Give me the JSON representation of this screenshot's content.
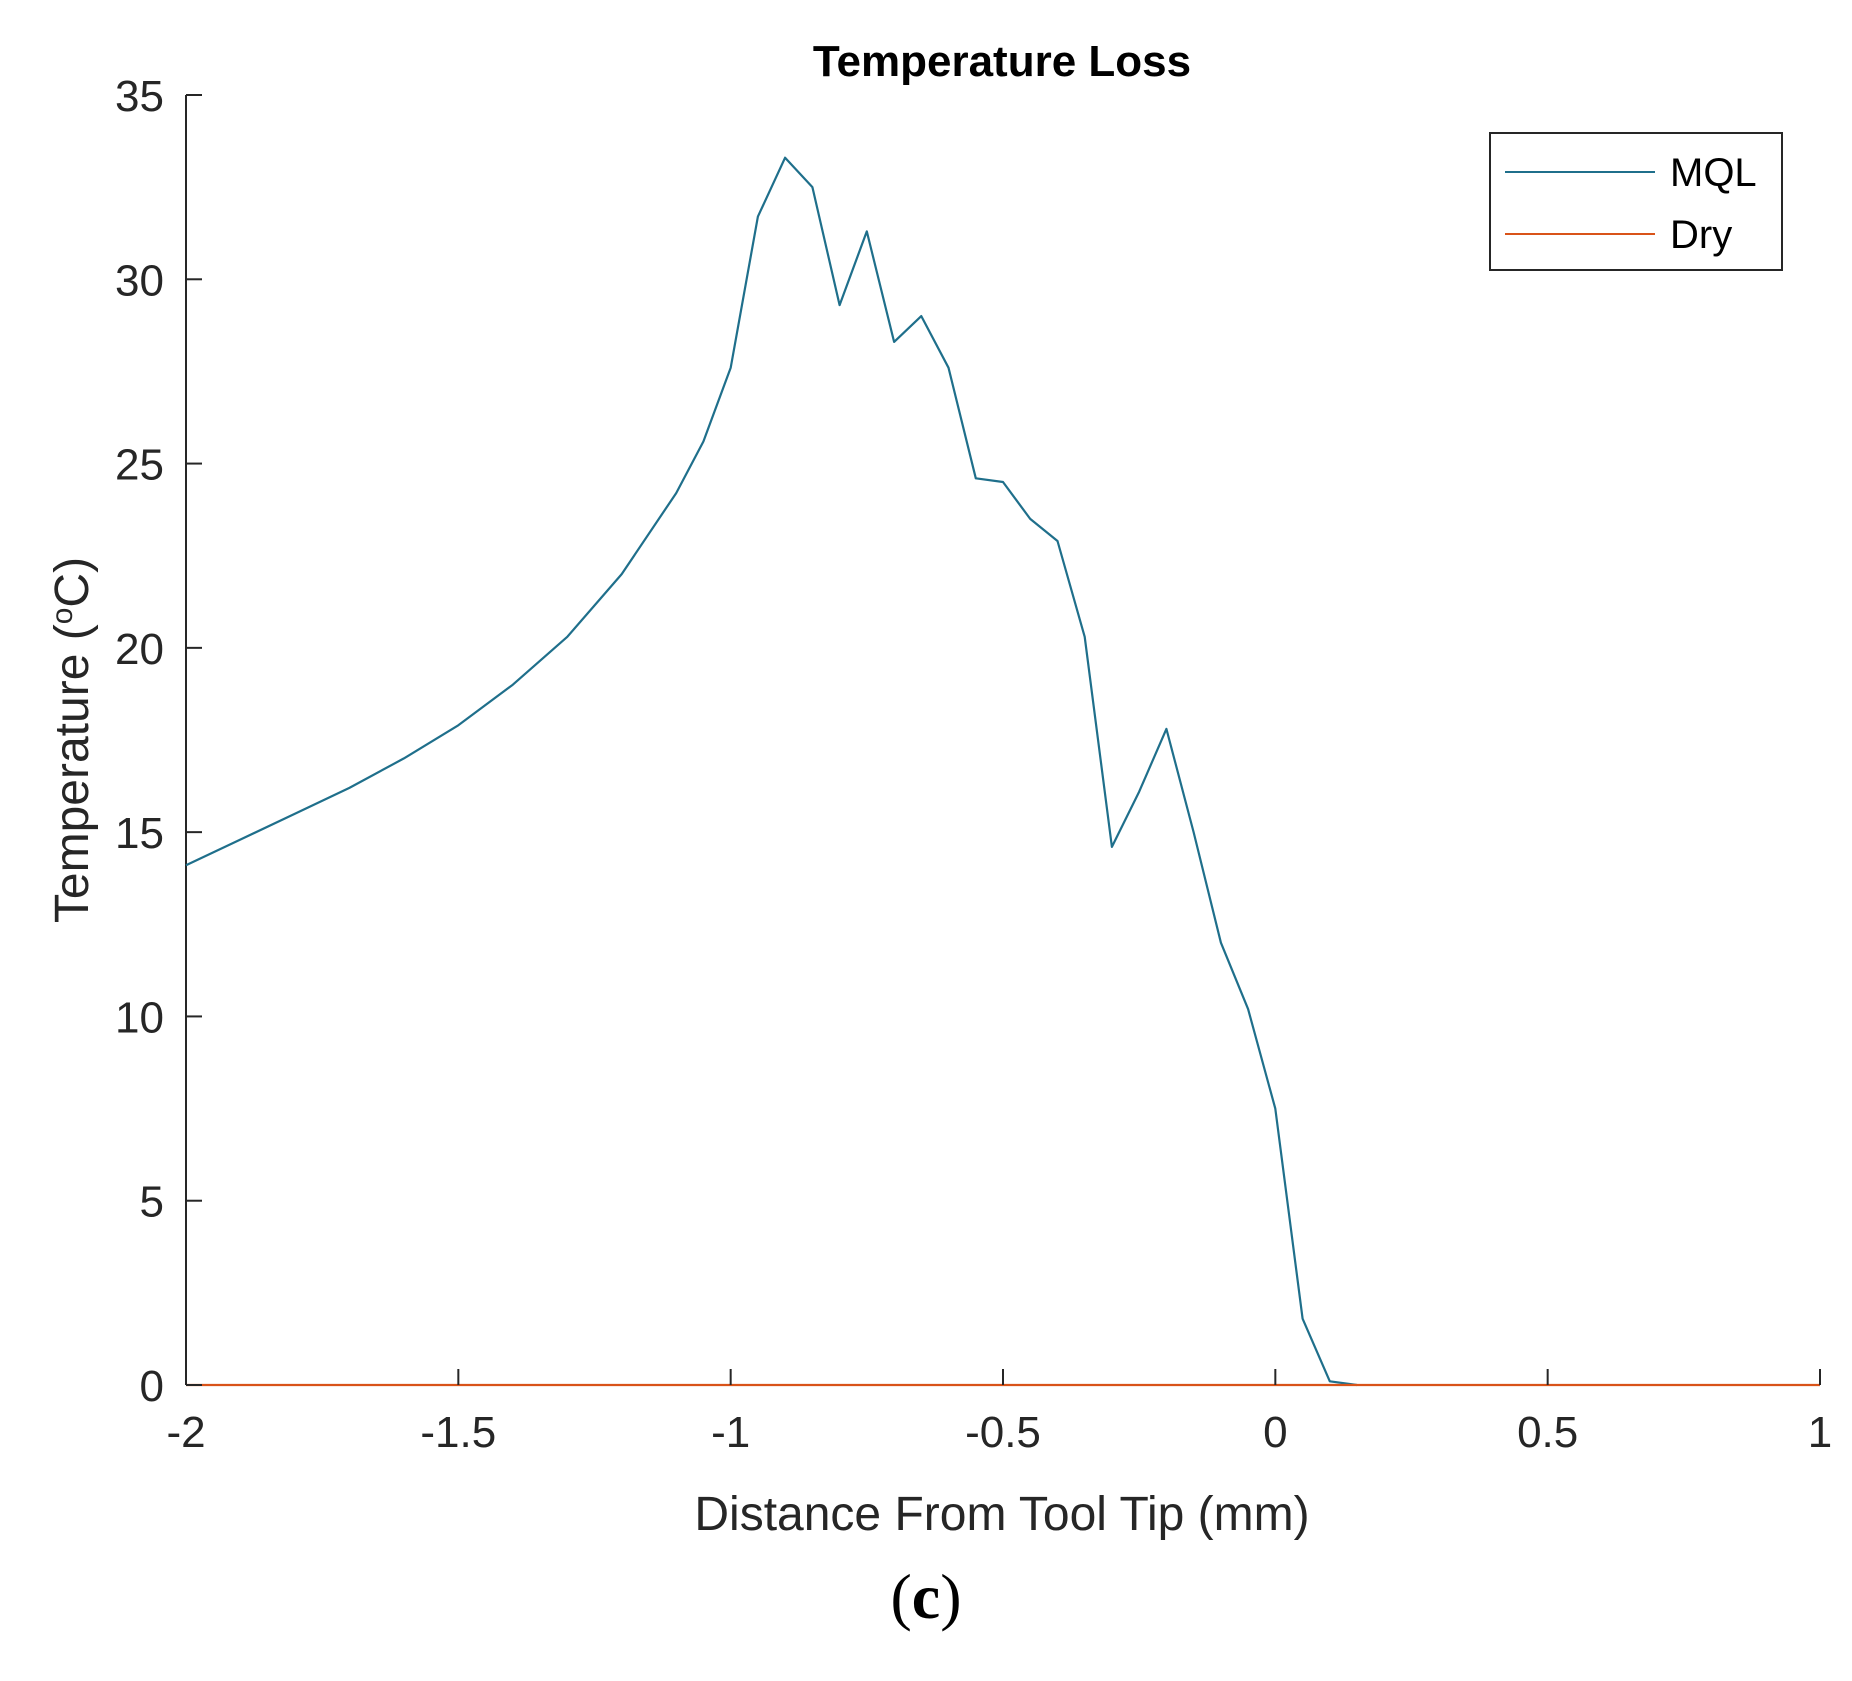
{
  "chart_data": {
    "type": "line",
    "title": "Temperature Loss",
    "xlabel": "Distance From Tool Tip (mm)",
    "ylabel_main": "Temperature (",
    "ylabel_sup": "o",
    "ylabel_tail": "C)",
    "xlim": [
      -2,
      1
    ],
    "ylim": [
      0,
      35
    ],
    "xticks": [
      -2,
      -1.5,
      -1,
      -0.5,
      0,
      0.5,
      1
    ],
    "xtick_labels": [
      "-2",
      "-1.5",
      "-1",
      "-0.5",
      "0",
      "0.5",
      "1"
    ],
    "yticks": [
      0,
      5,
      10,
      15,
      20,
      25,
      30,
      35
    ],
    "ytick_labels": [
      "0",
      "5",
      "10",
      "15",
      "20",
      "25",
      "30",
      "35"
    ],
    "legend_position": "top-right",
    "series": [
      {
        "name": "MQL",
        "color": "#1f6f8b",
        "x": [
          -2,
          -1.9,
          -1.8,
          -1.7,
          -1.6,
          -1.5,
          -1.4,
          -1.3,
          -1.2,
          -1.1,
          -1.05,
          -1.0,
          -0.95,
          -0.9,
          -0.85,
          -0.8,
          -0.75,
          -0.7,
          -0.65,
          -0.6,
          -0.55,
          -0.5,
          -0.45,
          -0.4,
          -0.35,
          -0.3,
          -0.25,
          -0.2,
          -0.15,
          -0.1,
          -0.05,
          0.0,
          0.05,
          0.1,
          0.15
        ],
        "y": [
          14.1,
          14.8,
          15.5,
          16.2,
          17.0,
          17.9,
          19.0,
          20.3,
          22.0,
          24.2,
          25.6,
          27.6,
          31.7,
          33.3,
          32.5,
          29.3,
          31.3,
          28.3,
          29.0,
          27.6,
          24.6,
          24.5,
          23.5,
          22.9,
          20.3,
          14.6,
          16.1,
          17.8,
          15.0,
          12.0,
          10.2,
          7.5,
          1.8,
          0.1,
          0.0
        ]
      },
      {
        "name": "Dry",
        "color": "#d95319",
        "x": [
          -2,
          1
        ],
        "y": [
          0,
          0
        ]
      }
    ]
  },
  "panel_label": {
    "open": "(",
    "letter": "c",
    "close": ")"
  }
}
